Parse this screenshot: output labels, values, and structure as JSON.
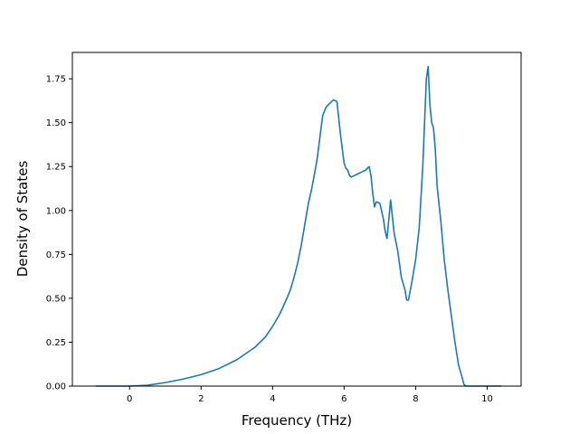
{
  "colors": {
    "line": "#1f77b4",
    "axes": "#000000",
    "background": "#ffffff"
  },
  "chart_data": {
    "type": "line",
    "title": "",
    "xlabel": "Frequency (THz)",
    "ylabel": "Density of States",
    "xlim": [
      -1.6,
      10.95
    ],
    "ylim": [
      0.0,
      1.9
    ],
    "xticks": [
      0,
      2,
      4,
      6,
      8,
      10
    ],
    "xtick_labels": [
      "0",
      "2",
      "4",
      "6",
      "8",
      "10"
    ],
    "yticks": [
      0.0,
      0.25,
      0.5,
      0.75,
      1.0,
      1.25,
      1.5,
      1.75
    ],
    "ytick_labels": [
      "0.00",
      "0.25",
      "0.50",
      "0.75",
      "1.00",
      "1.25",
      "1.50",
      "1.75"
    ],
    "grid": false,
    "legend": "none",
    "series": [
      {
        "x": [
          -0.95,
          0.0,
          0.5,
          1.0,
          1.5,
          2.0,
          2.5,
          3.0,
          3.5,
          3.8,
          4.0,
          4.2,
          4.4,
          4.5,
          4.6,
          4.7,
          4.8,
          5.0,
          5.1,
          5.2,
          5.25,
          5.3,
          5.4,
          5.5,
          5.55,
          5.6,
          5.7,
          5.8,
          5.9,
          6.0,
          6.05,
          6.1,
          6.15,
          6.2,
          6.3,
          6.4,
          6.5,
          6.6,
          6.7,
          6.75,
          6.8,
          6.85,
          6.9,
          7.0,
          7.1,
          7.15,
          7.2,
          7.3,
          7.4,
          7.5,
          7.6,
          7.7,
          7.75,
          7.8,
          7.9,
          8.0,
          8.1,
          8.2,
          8.3,
          8.35,
          8.4,
          8.45,
          8.5,
          8.55,
          8.6,
          8.7,
          8.8,
          8.9,
          9.0,
          9.1,
          9.2,
          9.3,
          9.35,
          9.4,
          9.45,
          9.5,
          10.4
        ],
        "y": [
          0.0,
          0.0,
          0.005,
          0.02,
          0.04,
          0.065,
          0.1,
          0.15,
          0.22,
          0.28,
          0.34,
          0.41,
          0.5,
          0.55,
          0.62,
          0.7,
          0.8,
          1.04,
          1.13,
          1.24,
          1.3,
          1.38,
          1.54,
          1.59,
          1.6,
          1.61,
          1.63,
          1.62,
          1.43,
          1.27,
          1.24,
          1.23,
          1.2,
          1.19,
          1.2,
          1.21,
          1.22,
          1.23,
          1.25,
          1.2,
          1.1,
          1.02,
          1.05,
          1.04,
          0.95,
          0.88,
          0.84,
          1.06,
          0.87,
          0.77,
          0.62,
          0.55,
          0.49,
          0.49,
          0.6,
          0.72,
          0.9,
          1.25,
          1.75,
          1.82,
          1.6,
          1.5,
          1.47,
          1.35,
          1.14,
          0.95,
          0.72,
          0.55,
          0.4,
          0.25,
          0.12,
          0.05,
          0.01,
          0.0,
          0.0,
          0.0,
          0.0
        ]
      }
    ]
  }
}
